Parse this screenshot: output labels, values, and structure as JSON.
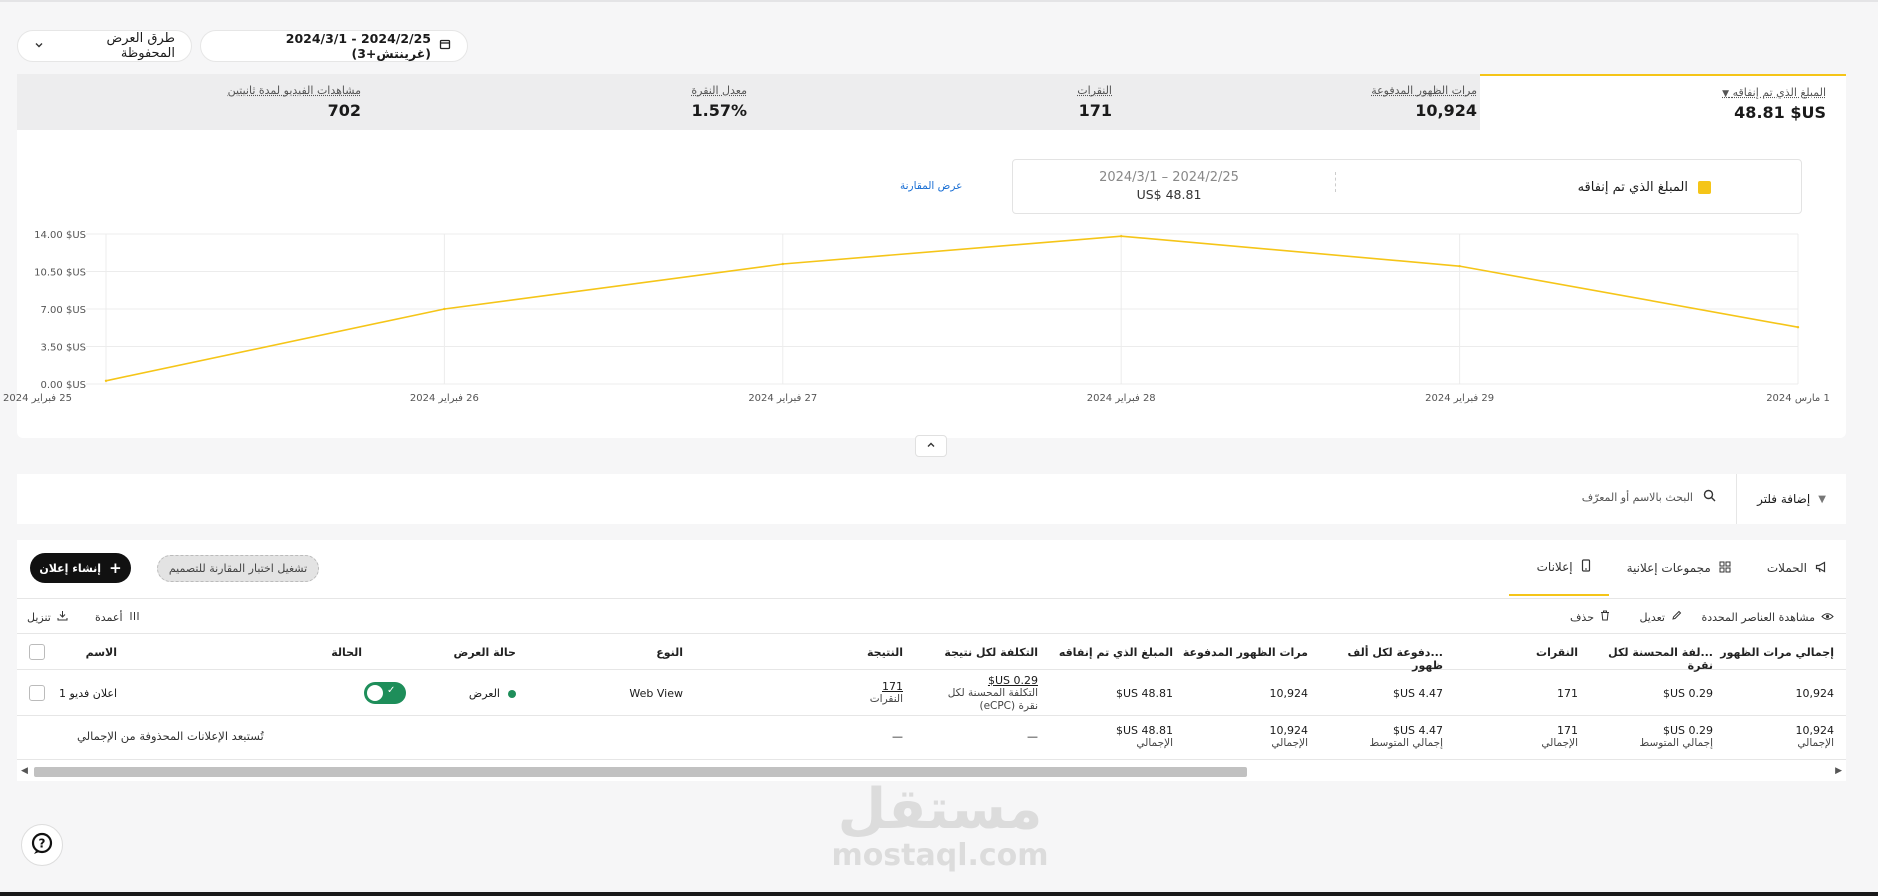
{
  "toolbar": {
    "saved_views": "طرق العرض المحفوظة",
    "date_range": "2024/2/25 - 2024/3/1 (غرينتش+3)"
  },
  "metrics": [
    {
      "label": "المبلغ الذي تم إنفاقه",
      "value": "48.81 $US"
    },
    {
      "label": "مرات الظهور المدفوعة",
      "value": "10,924"
    },
    {
      "label": "النقرات",
      "value": "171"
    },
    {
      "label": "معدل النقرة",
      "value": "1.57%"
    },
    {
      "label": "مشاهدات الفيديو لمدة ثانيتين",
      "value": "702"
    }
  ],
  "legend": {
    "series_label": "المبلغ الذي تم إنفاقه",
    "range": "2024/2/25 – 2024/3/1",
    "total": "48.81 $US",
    "compare_link": "عرض المقارنة",
    "series_color": "#f5c518"
  },
  "chart_data": {
    "type": "line",
    "x": [
      "25 فبراير 2024",
      "26 فبراير 2024",
      "27 فبراير 2024",
      "28 فبراير 2024",
      "29 فبراير 2024",
      "1 مارس 2024"
    ],
    "series": [
      {
        "values": [
          0.3,
          7.0,
          11.2,
          13.8,
          11.0,
          5.3
        ]
      }
    ],
    "y_ticks": [
      "0.00 $US",
      "3.50 $US",
      "7.00 $US",
      "10.50 $US",
      "14.00 $US"
    ],
    "ylim": [
      0,
      14
    ],
    "grid": true,
    "color": "#f5c518"
  },
  "filter": {
    "add_filter": "إضافة فلتر",
    "search_placeholder": "البحث بالاسم أو المعرّف"
  },
  "tabs": [
    {
      "label": "الحملات"
    },
    {
      "label": "مجموعات إعلانية"
    },
    {
      "label": "إعلانات"
    }
  ],
  "actions": {
    "create_ad": "إنشاء إعلان",
    "ab_test": "تشغيل اختبار المقارنة للتصميم",
    "view_selected": "مشاهدة العناصر المحددة",
    "edit": "تعديل",
    "delete": "حذف",
    "columns": "أعمدة",
    "download": "تنزيل"
  },
  "table": {
    "headers": {
      "name": "الاسم",
      "status": "الحالة",
      "delivery": "حالة العرض",
      "type": "النوع",
      "result": "النتيجة",
      "cost_per_result": "التكلفة لكل نتيجة",
      "spent": "المبلغ الذي تم إنفاقه",
      "paid_impressions": "مرات الظهور المدفوعة",
      "cpm": "...دفوعة لكل ألف ظهور",
      "clicks": "النقرات",
      "cpc": "...لفة المحسنة لكل نقرة",
      "total_impressions": "إجمالي مرات الظهور"
    },
    "row": {
      "name": "اعلان فديو 1",
      "delivery": "العرض",
      "type": "Web View",
      "result_value": "171",
      "result_unit": "النقرات",
      "cost_value": "0.29 US$",
      "cost_unit_1": "التكلفة المحسنة لكل",
      "cost_unit_2": "نقرة (eCPC)",
      "spent": "48.81 US$",
      "paid_impressions": "10,924",
      "cpm": "4.47 US$",
      "clicks": "171",
      "cpc": "0.29 US$",
      "total_impressions": "10,924"
    },
    "totals": {
      "note": "تُستبعد الإعلانات المحذوفة من الإجمالي",
      "dash": "—",
      "spent": "48.81 US$",
      "paid_impressions": "10,924",
      "cpm": "4.47 US$",
      "clicks": "171",
      "cpc": "0.29 US$",
      "total_impressions": "10,924",
      "label_total": "الإجمالي",
      "label_avg": "إجمالي المتوسط"
    }
  },
  "watermark": {
    "arabic": "مستقل",
    "latin": "mostaql.com"
  }
}
